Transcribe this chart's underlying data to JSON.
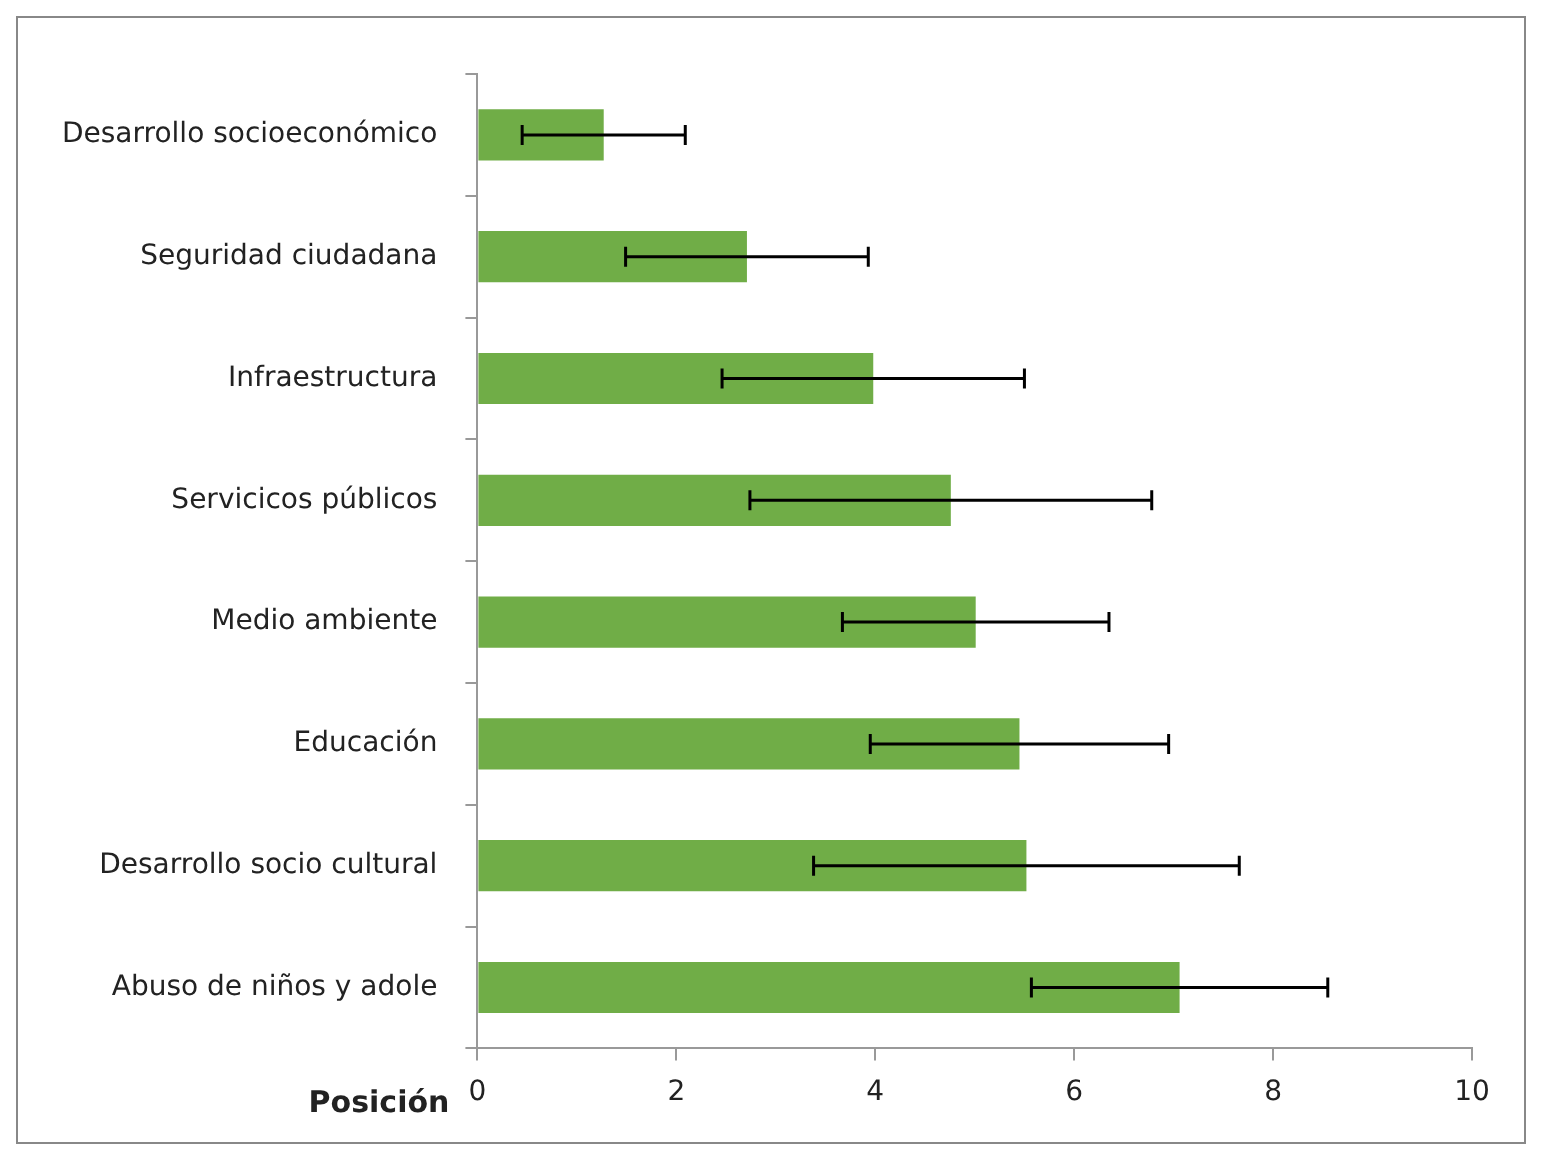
{
  "chart_data": {
    "type": "bar",
    "orientation": "horizontal",
    "xlabel": "Posición",
    "categories": [
      "Desarrollo socioeconómico",
      "Seguridad ciudadana",
      "Infraestructura",
      "Servicicos públicos",
      "Medio ambiente",
      "Educación",
      "Desarrollo socio cultural",
      "Abuso de niños y adole"
    ],
    "values": [
      1.27,
      2.71,
      3.98,
      4.76,
      5.01,
      5.45,
      5.52,
      7.06
    ],
    "errors": [
      0.82,
      1.22,
      1.52,
      2.02,
      1.34,
      1.5,
      2.14,
      1.49
    ],
    "color": "#70ad47",
    "xlim": [
      0,
      10
    ],
    "xticks": [
      0,
      2,
      4,
      6,
      8,
      10
    ],
    "grid": false,
    "legend": false
  }
}
